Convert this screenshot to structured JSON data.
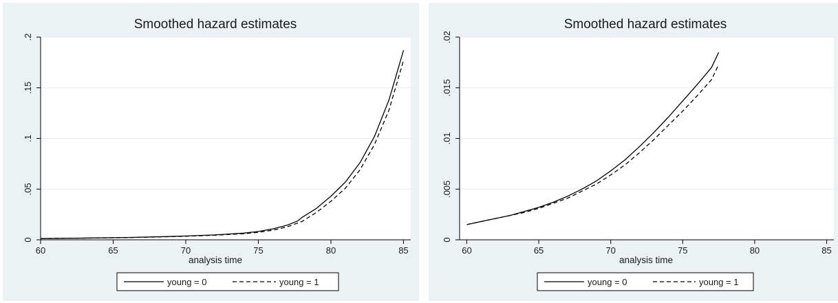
{
  "chart_data": [
    {
      "type": "line",
      "title": "Smoothed hazard estimates",
      "xlabel": "analysis time",
      "ylabel": "",
      "xlim": [
        60,
        85.5
      ],
      "ylim": [
        0,
        0.2
      ],
      "xticks": [
        60,
        65,
        70,
        75,
        80,
        85
      ],
      "xtick_labels": [
        "60",
        "65",
        "70",
        "75",
        "80",
        "85"
      ],
      "yticks": [
        0,
        0.05,
        0.1,
        0.15,
        0.2
      ],
      "ytick_labels": [
        "0",
        ".05",
        ".1",
        ".15",
        ".2"
      ],
      "grid": true,
      "legend_position": "bottom",
      "series": [
        {
          "name": "young = 0",
          "style": "solid",
          "color": "#000000",
          "x": [
            60,
            62,
            64,
            66,
            68,
            70,
            72,
            74,
            75,
            76,
            77,
            77.7,
            78,
            79,
            80,
            81,
            82,
            83,
            84,
            85
          ],
          "y": [
            0.0012,
            0.0015,
            0.0019,
            0.0023,
            0.0029,
            0.0037,
            0.0048,
            0.0066,
            0.0082,
            0.0108,
            0.0145,
            0.0185,
            0.022,
            0.031,
            0.043,
            0.057,
            0.076,
            0.102,
            0.138,
            0.187
          ]
        },
        {
          "name": "young = 1",
          "style": "dashed",
          "color": "#000000",
          "x": [
            60,
            62,
            64,
            66,
            68,
            70,
            72,
            74,
            75,
            76,
            77,
            78,
            79,
            80,
            81,
            82,
            83,
            84,
            85
          ],
          "y": [
            0.0012,
            0.0015,
            0.0018,
            0.0022,
            0.0028,
            0.0035,
            0.0045,
            0.006,
            0.0074,
            0.0095,
            0.0128,
            0.018,
            0.027,
            0.038,
            0.051,
            0.069,
            0.094,
            0.128,
            0.177
          ]
        }
      ]
    },
    {
      "type": "line",
      "title": "Smoothed hazard estimates",
      "xlabel": "analysis time",
      "ylabel": "",
      "xlim": [
        59.5,
        85.5
      ],
      "ylim": [
        0,
        0.02
      ],
      "xticks": [
        60,
        65,
        70,
        75,
        80,
        85
      ],
      "xtick_labels": [
        "60",
        "65",
        "70",
        "75",
        "80",
        "85"
      ],
      "yticks": [
        0,
        0.005,
        0.01,
        0.015,
        0.02
      ],
      "ytick_labels": [
        "0",
        ".005",
        ".01",
        ".015",
        ".02"
      ],
      "grid": true,
      "legend_position": "bottom",
      "series": [
        {
          "name": "young = 0",
          "style": "solid",
          "color": "#000000",
          "x": [
            60,
            61,
            62,
            63,
            64,
            65,
            66,
            67,
            68,
            69,
            70,
            71,
            72,
            73,
            74,
            75,
            76,
            77,
            77.5
          ],
          "y": [
            0.0015,
            0.0018,
            0.0021,
            0.0024,
            0.0028,
            0.0032,
            0.0037,
            0.0043,
            0.005,
            0.0058,
            0.0068,
            0.0079,
            0.0092,
            0.0106,
            0.0121,
            0.0137,
            0.0153,
            0.017,
            0.0185
          ]
        },
        {
          "name": "young = 1",
          "style": "dashed",
          "color": "#000000",
          "x": [
            60,
            61,
            62,
            63,
            64,
            65,
            66,
            67,
            68,
            69,
            70,
            71,
            72,
            73,
            74,
            75,
            76,
            77,
            77.5
          ],
          "y": [
            0.0015,
            0.0018,
            0.0021,
            0.0024,
            0.0027,
            0.0031,
            0.0036,
            0.0041,
            0.0048,
            0.0055,
            0.0064,
            0.0074,
            0.0086,
            0.0099,
            0.0113,
            0.0127,
            0.0142,
            0.0158,
            0.0173
          ]
        }
      ]
    }
  ]
}
